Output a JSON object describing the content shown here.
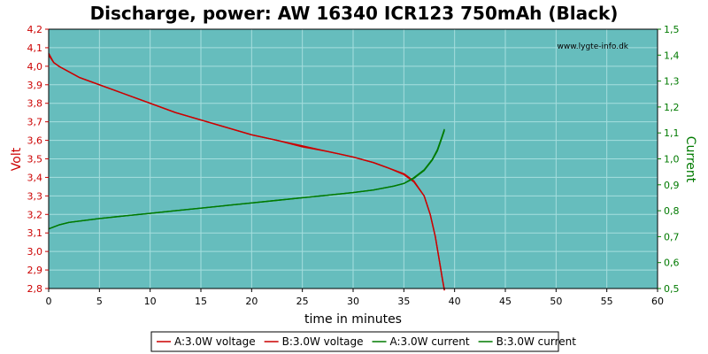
{
  "chart_data": {
    "type": "line",
    "title": "Discharge, power: AW 16340 ICR123 750mAh (Black)",
    "watermark": "www.lygte-info.dk",
    "xlabel": "time in minutes",
    "ylabel_left": "Volt",
    "ylabel_right": "Current",
    "xlim": [
      0,
      60
    ],
    "ylim_left": [
      2.8,
      4.2
    ],
    "ylim_right": [
      0.5,
      1.5
    ],
    "x_ticks": [
      "0",
      "5",
      "10",
      "15",
      "20",
      "25",
      "30",
      "35",
      "40",
      "45",
      "50",
      "55",
      "60"
    ],
    "y_left_ticks": [
      "2,8",
      "2,9",
      "3,0",
      "3,1",
      "3,2",
      "3,3",
      "3,4",
      "3,5",
      "3,6",
      "3,7",
      "3,8",
      "3,9",
      "4,0",
      "4,1",
      "4,2"
    ],
    "y_right_ticks": [
      "0,5",
      "0,6",
      "0,7",
      "0,8",
      "0,9",
      "1,0",
      "1,1",
      "1,2",
      "1,3",
      "1,4",
      "1,5"
    ],
    "grid": true,
    "legend_position": "bottom",
    "colors": {
      "plot_bg": "#66bdbd",
      "grid": "#a6dede",
      "voltage": "#cc0000",
      "current": "#007a00",
      "left_axis": "#cc0000",
      "right_axis": "#007a00"
    },
    "series": [
      {
        "name": "A:3.0W voltage",
        "axis": "left",
        "color": "#cc0000",
        "x": [
          0,
          0.5,
          1,
          2,
          3,
          5,
          7.5,
          10,
          12.5,
          15,
          17.5,
          20,
          22.5,
          25,
          27.5,
          30,
          32,
          33.5,
          35,
          36,
          37,
          37.6,
          38.1,
          38.5,
          38.8,
          39.0
        ],
        "y": [
          4.06,
          4.02,
          4.0,
          3.97,
          3.94,
          3.9,
          3.85,
          3.8,
          3.75,
          3.71,
          3.67,
          3.63,
          3.6,
          3.57,
          3.54,
          3.51,
          3.48,
          3.45,
          3.42,
          3.38,
          3.3,
          3.2,
          3.08,
          2.95,
          2.85,
          2.79
        ]
      },
      {
        "name": "B:3.0W voltage",
        "axis": "left",
        "color": "#cc0000",
        "x": [
          0,
          0.5,
          1,
          2,
          3,
          5,
          7.5,
          10,
          12.5,
          15,
          17.5,
          20,
          22.5,
          25,
          27.5,
          30,
          32,
          33.5,
          35,
          36,
          37,
          37.6,
          38.1,
          38.5,
          38.8,
          39.0
        ],
        "y": [
          4.07,
          4.02,
          4.0,
          3.97,
          3.94,
          3.9,
          3.85,
          3.8,
          3.75,
          3.71,
          3.67,
          3.63,
          3.6,
          3.565,
          3.54,
          3.51,
          3.48,
          3.45,
          3.415,
          3.375,
          3.3,
          3.2,
          3.08,
          2.95,
          2.85,
          2.79
        ]
      },
      {
        "name": "A:3.0W current",
        "axis": "right",
        "color": "#007a00",
        "x": [
          0,
          1,
          2,
          5,
          7.5,
          10,
          12.5,
          15,
          17.5,
          20,
          22.5,
          25,
          27.5,
          30,
          32,
          34,
          35,
          36,
          37,
          37.8,
          38.3,
          38.7,
          39.0
        ],
        "y": [
          0.73,
          0.745,
          0.755,
          0.77,
          0.78,
          0.79,
          0.8,
          0.81,
          0.82,
          0.83,
          0.84,
          0.85,
          0.86,
          0.87,
          0.88,
          0.895,
          0.905,
          0.925,
          0.955,
          0.995,
          1.03,
          1.075,
          1.11
        ]
      },
      {
        "name": "B:3.0W current",
        "axis": "right",
        "color": "#007a00",
        "x": [
          0,
          1,
          2,
          5,
          7.5,
          10,
          12.5,
          15,
          17.5,
          20,
          22.5,
          25,
          27.5,
          30,
          32,
          34,
          35,
          36,
          37,
          37.8,
          38.3,
          38.7,
          39.0
        ],
        "y": [
          0.73,
          0.745,
          0.755,
          0.77,
          0.78,
          0.79,
          0.8,
          0.81,
          0.82,
          0.83,
          0.84,
          0.85,
          0.86,
          0.87,
          0.88,
          0.895,
          0.905,
          0.928,
          0.958,
          0.998,
          1.035,
          1.08,
          1.115
        ]
      }
    ]
  }
}
